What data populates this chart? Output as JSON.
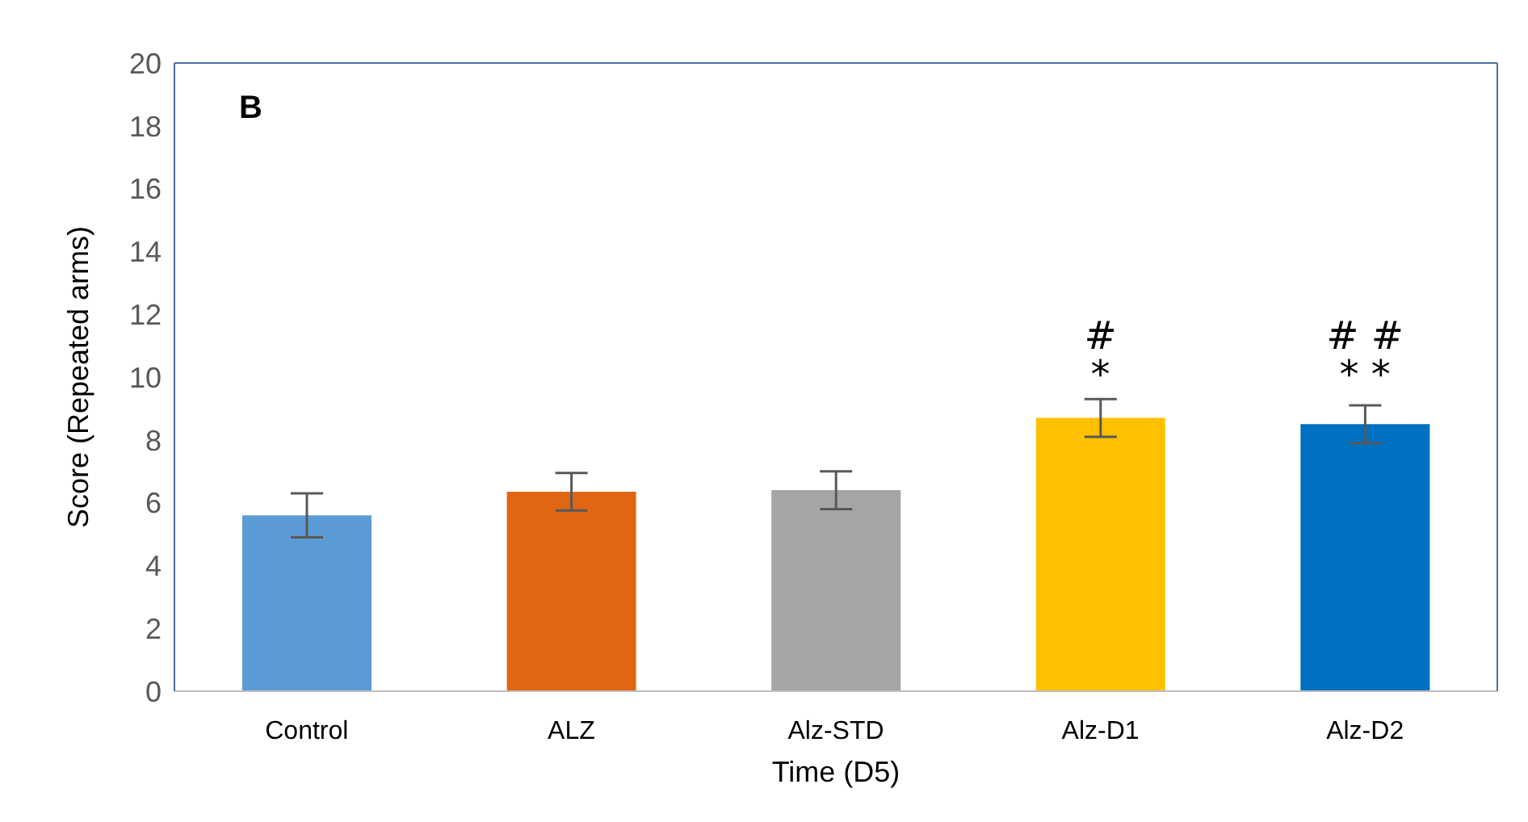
{
  "chart_data": {
    "type": "bar",
    "xlabel": "Time (D5)",
    "ylabel": "Score (Repeated arms)",
    "categories": [
      "Control",
      "ALZ",
      "Alz-STD",
      "Alz-D1",
      "Alz-D2"
    ],
    "values": [
      5.6,
      6.35,
      6.4,
      8.7,
      8.5
    ],
    "errors": [
      0.7,
      0.6,
      0.6,
      0.6,
      0.6
    ],
    "colors": [
      "#5b9bd5",
      "#e06614",
      "#a5a5a5",
      "#ffc000",
      "#0070c0"
    ],
    "ylim": [
      0,
      20
    ],
    "yticks": [
      0,
      2,
      4,
      6,
      8,
      10,
      12,
      14,
      16,
      18,
      20
    ],
    "grid": false,
    "legend": false,
    "annotations": [
      "B",
      "#",
      "*",
      "# #",
      "* *"
    ]
  }
}
